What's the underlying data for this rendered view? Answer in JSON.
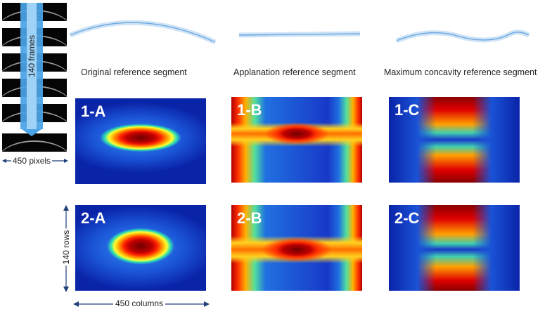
{
  "strip": {
    "frames_label": "140 frames",
    "pixels_label": "450 pixels"
  },
  "segments": {
    "original": "Original reference segment",
    "applanation": "Applanation reference segment",
    "concavity": "Maximum concavity reference segment"
  },
  "panels": {
    "p1A": "1-A",
    "p1B": "1-B",
    "p1C": "1-C",
    "p2A": "2-A",
    "p2B": "2-B",
    "p2C": "2-C"
  },
  "dims": {
    "rows": "140 rows",
    "columns": "450 columns"
  },
  "colors": {
    "arrow": "#1f3f7a",
    "curve": "#6aa8e0",
    "bar": "#4ba3e6"
  }
}
